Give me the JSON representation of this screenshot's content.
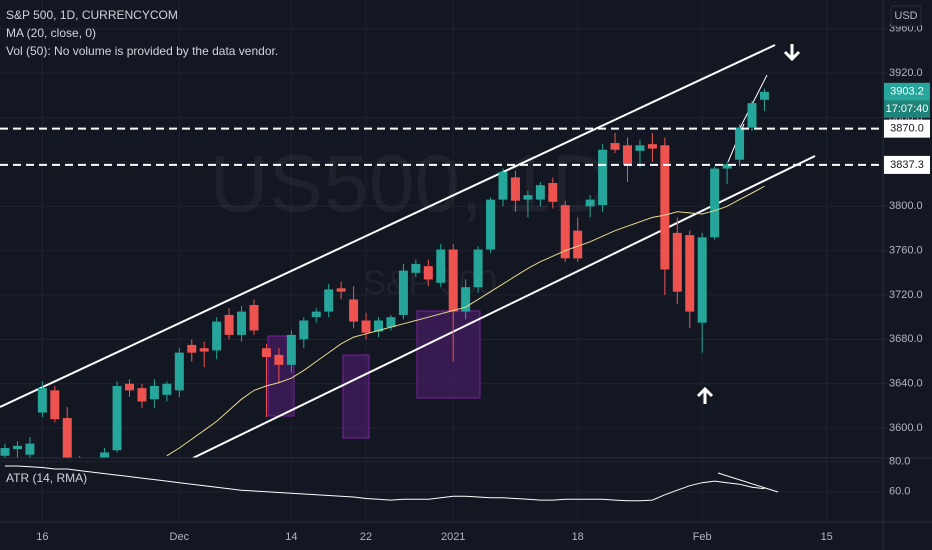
{
  "chart_data": {
    "type": "candlestick",
    "title": "S&P 500, 1D, CURRENCYCOM",
    "watermark": "US500, 1D",
    "watermark_sub": "S&P 500",
    "volume_note": "Vol (50): No volume is provided by the data vendor.",
    "currency": "USD",
    "categories": [
      null,
      null,
      null,
      "16",
      null,
      null,
      null,
      null,
      null,
      null,
      null,
      null,
      null,
      null,
      "Dec",
      null,
      null,
      null,
      null,
      null,
      null,
      null,
      null,
      "14",
      null,
      null,
      null,
      null,
      null,
      "22",
      null,
      null,
      null,
      null,
      null,
      null,
      "2021",
      null,
      null,
      null,
      null,
      null,
      null,
      null,
      null,
      null,
      "18",
      null,
      null,
      null,
      null,
      null,
      null,
      null,
      null,
      null,
      "Feb",
      null,
      null,
      null,
      null,
      null,
      null,
      null,
      null,
      null,
      "15"
    ],
    "open": [
      3575,
      3581,
      3576,
      3614,
      3634,
      3609,
      3568,
      3560,
      3556,
      3580,
      3640,
      3636,
      3626,
      3630,
      3634,
      3675,
      3672,
      3670,
      3702,
      3684,
      3711,
      3672,
      3666,
      3657,
      3680,
      3700,
      3705,
      3726,
      3716,
      3697,
      3687,
      3691,
      3702,
      3740,
      3746,
      3731,
      3761,
      3705,
      3727,
      3761,
      3806,
      3826,
      3806,
      3806,
      3821,
      3801,
      3778,
      3800,
      3801,
      3857,
      3855,
      3850,
      3856,
      3855,
      3776,
      3774,
      3695,
      3772,
      3834,
      3842,
      3871,
      3896,
      null,
      null,
      null,
      null,
      null
    ],
    "high": [
      3586,
      3588,
      3592,
      3642,
      3638,
      3619,
      3575,
      3572,
      3582,
      3642,
      3644,
      3640,
      3644,
      3642,
      3672,
      3680,
      3678,
      3700,
      3708,
      3710,
      3716,
      3676,
      3672,
      3688,
      3700,
      3708,
      3730,
      3732,
      3728,
      3704,
      3700,
      3702,
      3748,
      3752,
      3752,
      3766,
      3766,
      3734,
      3764,
      3808,
      3834,
      3832,
      3814,
      3822,
      3826,
      3805,
      3790,
      3810,
      3856,
      3866,
      3862,
      3860,
      3866,
      3862,
      3790,
      3778,
      3776,
      3836,
      3840,
      3874,
      3895,
      3906,
      null,
      null,
      null,
      null,
      null
    ],
    "low": [
      3570,
      3572,
      3570,
      3610,
      3605,
      3565,
      3550,
      3546,
      3550,
      3578,
      3628,
      3618,
      3618,
      3624,
      3628,
      3660,
      3655,
      3662,
      3680,
      3678,
      3684,
      3610,
      3640,
      3650,
      3672,
      3695,
      3700,
      3716,
      3690,
      3680,
      3682,
      3688,
      3698,
      3736,
      3728,
      3727,
      3660,
      3698,
      3722,
      3758,
      3800,
      3795,
      3790,
      3800,
      3798,
      3750,
      3750,
      3790,
      3795,
      3848,
      3822,
      3835,
      3840,
      3720,
      3712,
      3690,
      3668,
      3770,
      3820,
      3836,
      3868,
      3886,
      null,
      null,
      null,
      null,
      null
    ],
    "close": [
      3582,
      3584,
      3586,
      3636,
      3608,
      3568,
      3557,
      3552,
      3578,
      3638,
      3634,
      3624,
      3638,
      3640,
      3668,
      3668,
      3669,
      3696,
      3684,
      3705,
      3688,
      3664,
      3657,
      3684,
      3697,
      3705,
      3725,
      3723,
      3696,
      3686,
      3697,
      3700,
      3742,
      3748,
      3734,
      3761,
      3705,
      3727,
      3761,
      3806,
      3831,
      3805,
      3810,
      3819,
      3804,
      3753,
      3753,
      3806,
      3851,
      3851,
      3837,
      3855,
      3852,
      3743,
      3723,
      3705,
      3772,
      3834,
      3838,
      3871,
      3893,
      3903.2,
      null,
      null,
      null,
      null,
      null
    ],
    "up_color": "#26a69a",
    "down_color": "#ef5350",
    "ma": {
      "name": "MA (20, close, 0)",
      "color": "#e8d98c",
      "values": [
        null,
        null,
        null,
        null,
        null,
        null,
        null,
        null,
        null,
        null,
        null,
        null,
        null,
        3575,
        3582,
        3590,
        3598,
        3606,
        3616,
        3626,
        3634,
        3638,
        3641,
        3645,
        3652,
        3660,
        3668,
        3676,
        3682,
        3685,
        3688,
        3691,
        3694,
        3697,
        3700,
        3703,
        3706,
        3709,
        3716,
        3723,
        3730,
        3737,
        3744,
        3750,
        3755,
        3760,
        3764,
        3768,
        3773,
        3778,
        3782,
        3786,
        3790,
        3792,
        3795,
        3794,
        3793,
        3796,
        3800,
        3806,
        3812,
        3818,
        null,
        null,
        null,
        null,
        null
      ]
    },
    "ylim": [
      3573,
      3986
    ],
    "yticks": [
      {
        "value": 3600,
        "label": "3600.0"
      },
      {
        "value": 3640,
        "label": "3640.0"
      },
      {
        "value": 3680,
        "label": "3680.0"
      },
      {
        "value": 3720,
        "label": "3720.0"
      },
      {
        "value": 3760,
        "label": "3760.0"
      },
      {
        "value": 3800,
        "label": "3800.0"
      },
      {
        "value": 3840,
        "label": "3840.0"
      },
      {
        "value": 3880,
        "label": "3880.0"
      },
      {
        "value": 3920,
        "label": "3920.0"
      },
      {
        "value": 3960,
        "label": "3960.0"
      }
    ],
    "hlines": [
      {
        "value": 3870,
        "label": "3870.0"
      },
      {
        "value": 3837.3,
        "label": "3837.3"
      }
    ],
    "last_price": {
      "value": 3903.2,
      "label": "3903.2"
    },
    "countdown": "17:07:40",
    "grid": true,
    "atr": {
      "name": "ATR (14, RMA)",
      "color": "#ffffff",
      "values": [
        77,
        77,
        76.5,
        76,
        75,
        75,
        74,
        73,
        72,
        71,
        70,
        69,
        68,
        67,
        66,
        65,
        64,
        63,
        62,
        61,
        60.5,
        60,
        59.5,
        59,
        58.5,
        58,
        57.5,
        57,
        56.5,
        55.5,
        55,
        54.5,
        55,
        55,
        55,
        56,
        57,
        57,
        56.5,
        56,
        56,
        55.5,
        55,
        54.5,
        54.5,
        55,
        55,
        55,
        55,
        54.5,
        54,
        54,
        54.5,
        58,
        61,
        64,
        66,
        67,
        66,
        65,
        63,
        62,
        null,
        null,
        null,
        null,
        null
      ],
      "ylim": [
        40,
        82.3
      ],
      "yticks": [
        {
          "value": 60,
          "label": "60.0"
        },
        {
          "value": 80,
          "label": "80.0"
        }
      ]
    }
  }
}
